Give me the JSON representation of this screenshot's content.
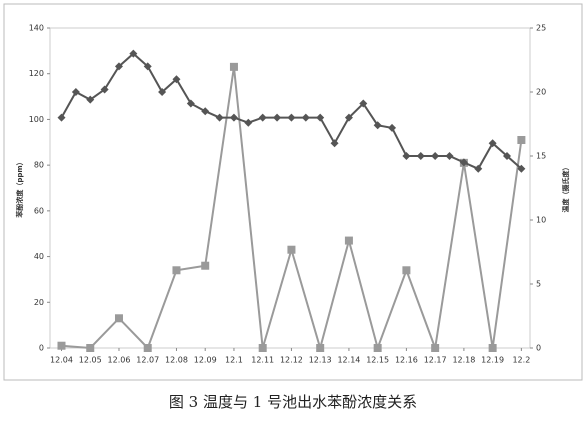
{
  "chart_data": {
    "type": "line",
    "caption": "图 3   温度与 1 号池出水苯酚浓度关系",
    "y_label": "苯酚浓度（ppm）",
    "y2_label": "温度（摄氏度）",
    "xlim": [
      -0.4,
      16.3
    ],
    "xticks": [
      {
        "value": 0,
        "label": "12.04"
      },
      {
        "value": 1,
        "label": "12.05"
      },
      {
        "value": 2,
        "label": "12.06"
      },
      {
        "value": 3,
        "label": "12.07"
      },
      {
        "value": 4,
        "label": "12.08"
      },
      {
        "value": 5,
        "label": "12.09"
      },
      {
        "value": 6,
        "label": "12.1"
      },
      {
        "value": 7,
        "label": "12.11"
      },
      {
        "value": 8,
        "label": "12.12"
      },
      {
        "value": 9,
        "label": "12.13"
      },
      {
        "value": 10,
        "label": "12.14"
      },
      {
        "value": 11,
        "label": "12.15"
      },
      {
        "value": 12,
        "label": "12.16"
      },
      {
        "value": 13,
        "label": "12.17"
      },
      {
        "value": 14,
        "label": "12.18"
      },
      {
        "value": 15,
        "label": "12.19"
      },
      {
        "value": 16,
        "label": "12.2"
      }
    ],
    "ylim": [
      0,
      140
    ],
    "yticks": [
      0,
      20,
      40,
      60,
      80,
      100,
      120,
      140
    ],
    "y2lim": [
      0,
      25
    ],
    "y2ticks": [
      0,
      5,
      10,
      15,
      20,
      25
    ],
    "series": [
      {
        "color": "#9a9a9a",
        "marker": "square",
        "x": [
          0,
          1,
          2,
          3,
          4,
          5,
          6,
          7,
          8,
          9,
          10,
          11,
          12,
          13,
          14,
          15,
          16
        ],
        "values": [
          1,
          0,
          13,
          0,
          34,
          36,
          123,
          0,
          43,
          0,
          47,
          0,
          34,
          0,
          81,
          0,
          91
        ]
      },
      {
        "color": "#555555",
        "marker": "diamond",
        "axis": "y2",
        "x": [
          0,
          0.5,
          1,
          1.5,
          2,
          2.5,
          3,
          3.5,
          4,
          4.5,
          5,
          5.5,
          6,
          6.5,
          7,
          7.5,
          8,
          8.5,
          9,
          9.5,
          10,
          10.5,
          11,
          11.5,
          12,
          12.5,
          13,
          13.5,
          14,
          14.5,
          15,
          15.5,
          16
        ],
        "values": [
          18,
          20,
          19.4,
          20.2,
          22,
          23,
          22,
          20,
          21,
          19.1,
          18.5,
          18,
          18,
          17.6,
          18,
          18,
          18,
          18,
          18,
          16,
          18,
          19.1,
          17.4,
          17.2,
          15,
          15,
          15,
          15,
          14.5,
          14,
          16,
          15,
          14
        ]
      }
    ]
  }
}
